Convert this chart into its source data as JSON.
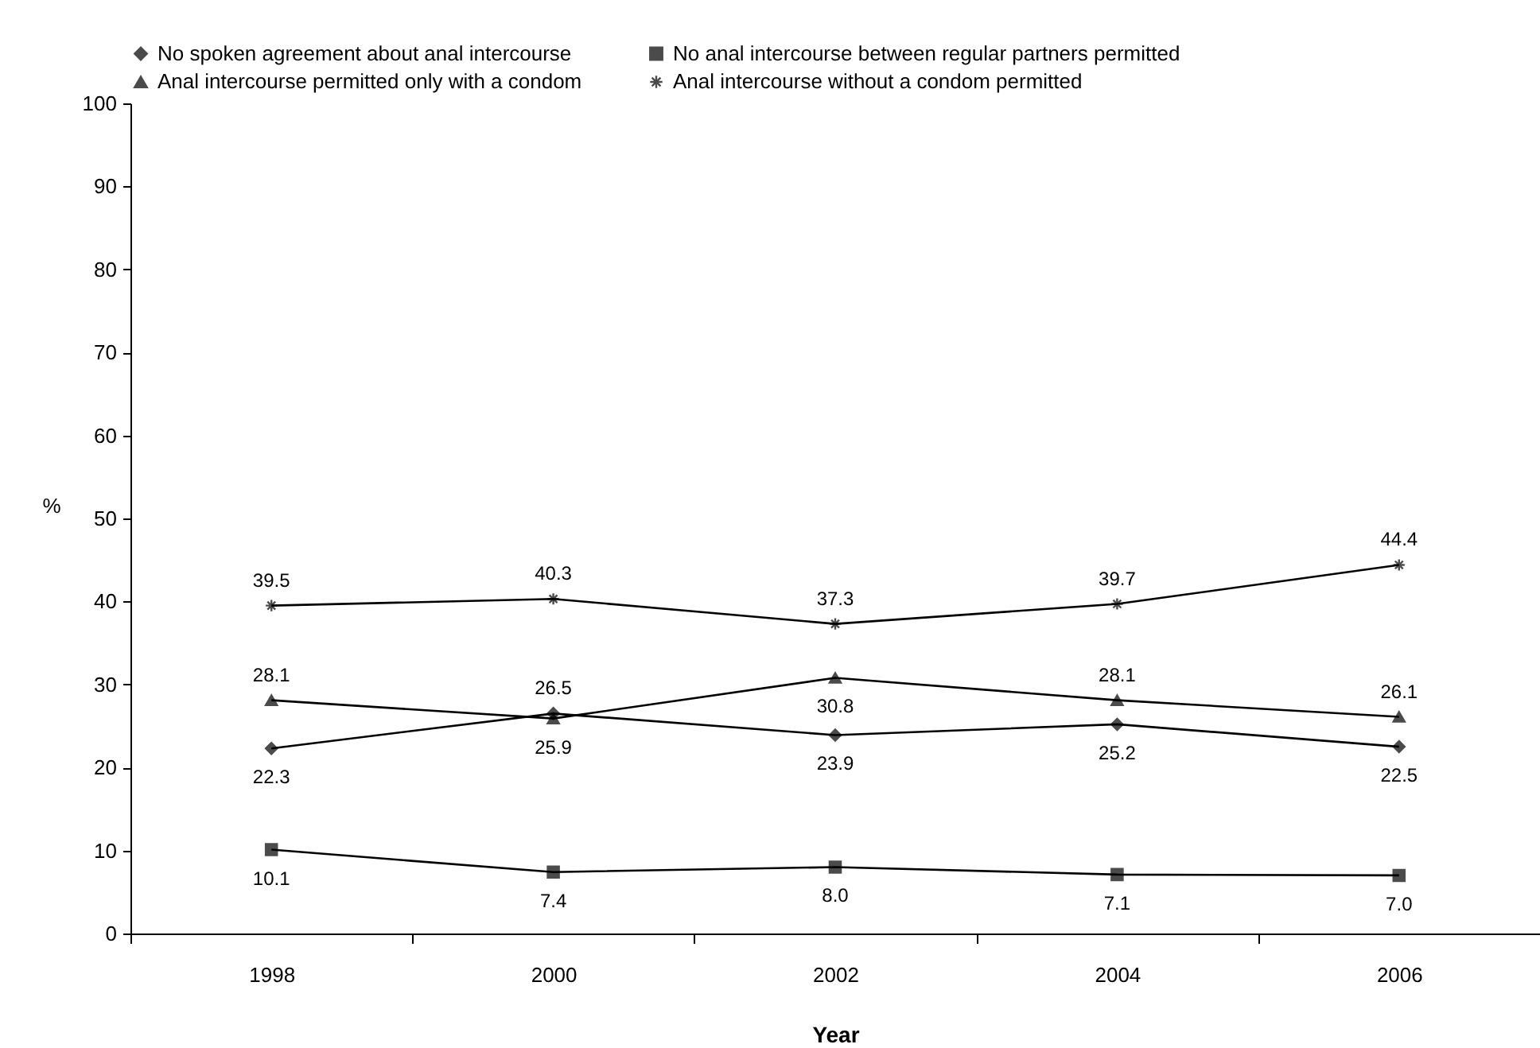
{
  "chart_data": {
    "type": "line",
    "xlabel": "Year",
    "ylabel": "%",
    "categories": [
      "1998",
      "2000",
      "2002",
      "2004",
      "2006"
    ],
    "ylim": [
      0,
      100
    ],
    "yticks": [
      0,
      10,
      20,
      30,
      40,
      50,
      60,
      70,
      80,
      90,
      100
    ],
    "grid": false,
    "legend": "top",
    "line_style": "solid",
    "series": [
      {
        "name": "No spoken agreement about anal intercourse",
        "color": "#000000",
        "marker": "diamond",
        "values": [
          22.3,
          26.5,
          23.9,
          25.2,
          22.5
        ],
        "value_labels": [
          "22.3",
          "26.5",
          "23.9",
          "25.2",
          "22.5"
        ]
      },
      {
        "name": "No anal intercourse between regular partners permitted",
        "color": "#000000",
        "marker": "square",
        "values": [
          10.1,
          7.4,
          8.0,
          7.1,
          7.0
        ],
        "value_labels": [
          "10.1",
          "7.4",
          "8.0",
          "7.1",
          "7.0"
        ]
      },
      {
        "name": "Anal intercourse permitted only with a condom",
        "color": "#000000",
        "marker": "triangle",
        "values": [
          28.1,
          25.9,
          30.8,
          28.1,
          26.1
        ],
        "value_labels": [
          "28.1",
          "25.9",
          "30.8",
          "28.1",
          "26.1"
        ]
      },
      {
        "name": "Anal intercourse without a condom permitted",
        "color": "#000000",
        "marker": "cross",
        "values": [
          39.5,
          40.3,
          37.3,
          39.7,
          44.4
        ],
        "value_labels": [
          "39.5",
          "40.3",
          "37.3",
          "39.7",
          "44.4"
        ]
      }
    ]
  }
}
